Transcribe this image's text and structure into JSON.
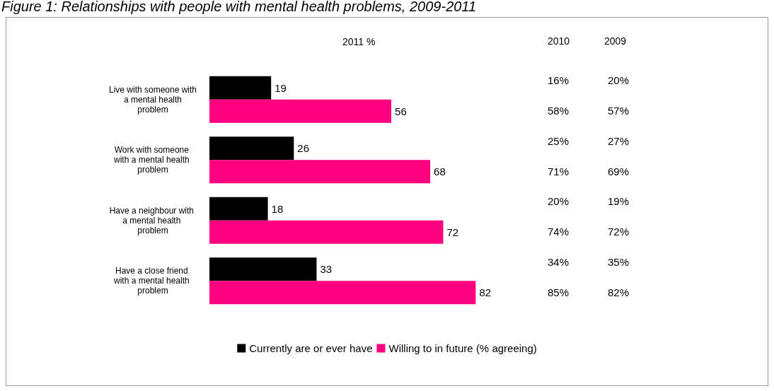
{
  "chart_data": {
    "type": "bar",
    "orientation": "horizontal",
    "title": "Figure 1: Relationships with people with mental health problems, 2009-2011",
    "subtitle": "2011 %",
    "categories": [
      "Live with someone with a mental health problem",
      "Work with someone with a mental health problem",
      "Have a neighbour with a mental health problem",
      "Have a close friend with a mental health problem"
    ],
    "series": [
      {
        "name": "Currently are or ever have",
        "color": "#000000",
        "values": [
          19,
          26,
          18,
          33
        ]
      },
      {
        "name": "Willing to in future (% agreeing)",
        "color": "#ff0080",
        "values": [
          56,
          68,
          72,
          82
        ]
      }
    ],
    "data_labels": true,
    "legend": "bottom",
    "annotations": [
      "2010",
      "2009",
      "16%",
      "20%",
      "58%",
      "57%",
      "25%",
      "27%",
      "71%",
      "69%",
      "20%",
      "19%",
      "74%",
      "72%",
      "34%",
      "35%",
      "85%",
      "82%"
    ]
  }
}
